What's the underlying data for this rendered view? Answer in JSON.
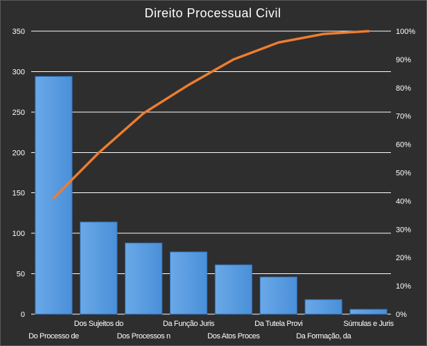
{
  "chart_data": {
    "type": "bar",
    "title": "Direito Processual Civil",
    "categories": [
      "Do Processo de",
      "Dos Sujeitos do",
      "Dos Processos n",
      "Da Função Juris",
      "Dos Atos Proces",
      "Da Tutela Provi",
      "Da Formação, da",
      "Súmulas e Juris"
    ],
    "series": [
      {
        "type": "bar",
        "values": [
          294,
          114,
          88,
          77,
          61,
          46,
          18,
          6
        ]
      },
      {
        "type": "line",
        "axis": "right",
        "values": [
          0.41,
          0.57,
          0.71,
          0.81,
          0.9,
          0.96,
          0.99,
          1.0
        ]
      }
    ],
    "yticks_left": [
      "0",
      "50",
      "100",
      "150",
      "200",
      "250",
      "300",
      "350"
    ],
    "yticks_right": [
      "0%",
      "10%",
      "20%",
      "30%",
      "40%",
      "50%",
      "60%",
      "70%",
      "80%",
      "90%",
      "100%"
    ],
    "ylim": [
      0,
      350
    ],
    "ylim_right": [
      0,
      1
    ],
    "grid": true,
    "legend": "none",
    "colors": {
      "background": "#2e2e2e",
      "grid": "#ffffff",
      "bar": "#4a8fd8",
      "bar_edge": "#2f6fb7",
      "line": "#ed7d31",
      "text": "#ffffff"
    }
  }
}
